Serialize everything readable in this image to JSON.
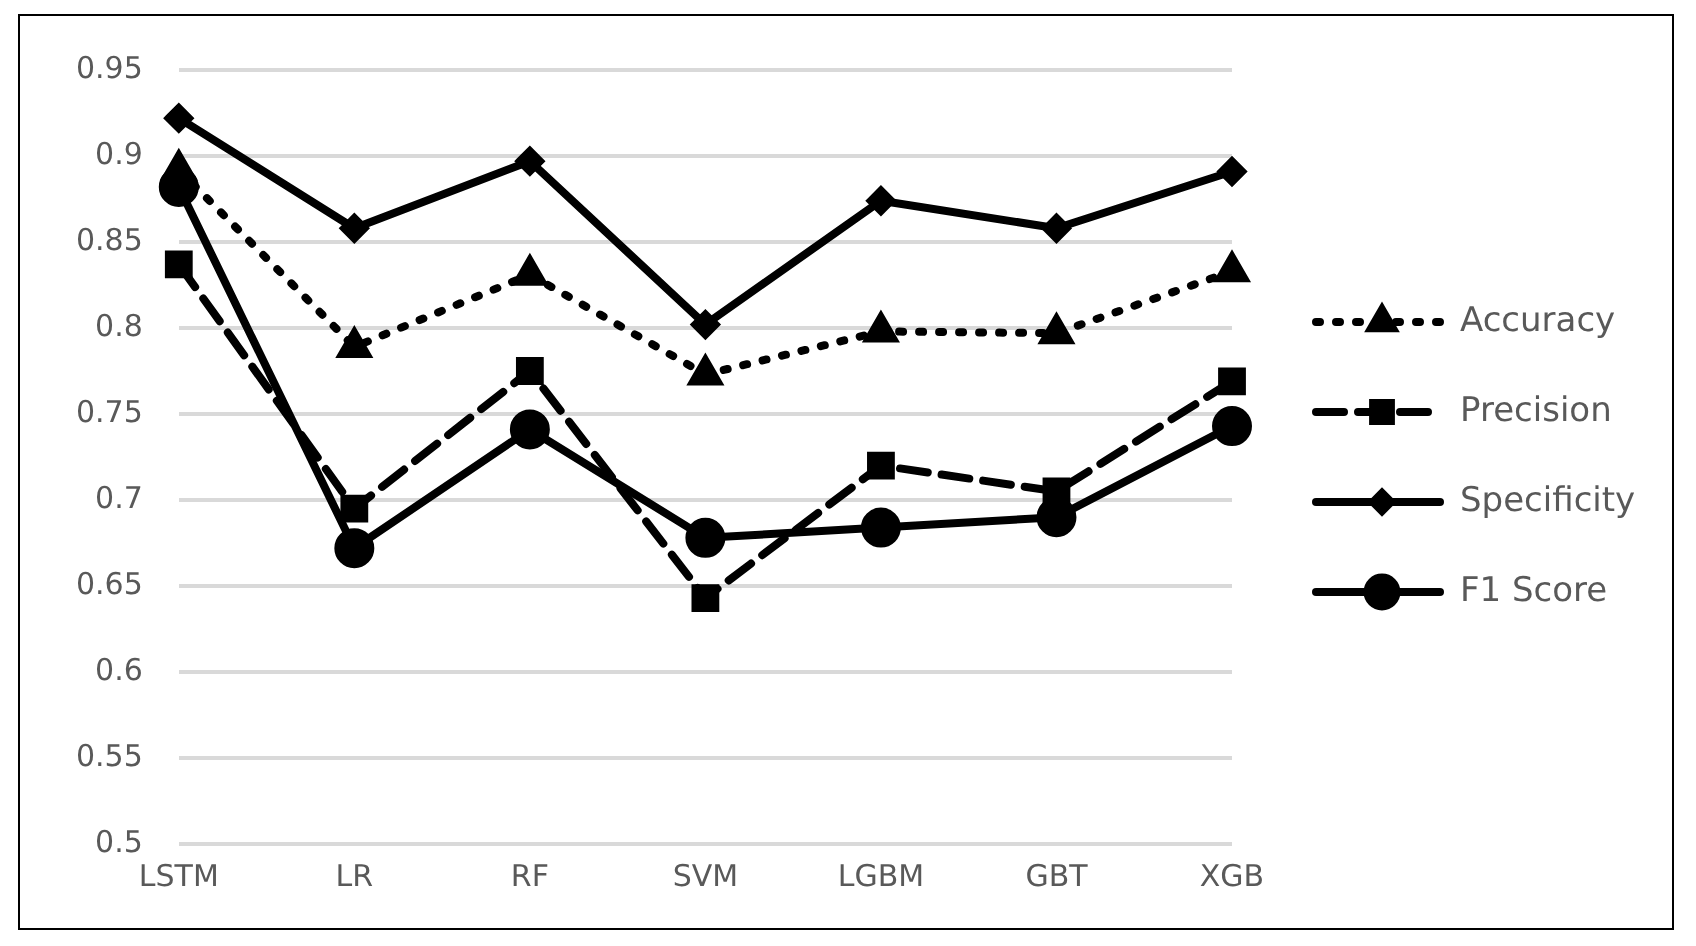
{
  "chart_data": {
    "type": "line",
    "categories": [
      "LSTM",
      "LR",
      "RF",
      "SVM",
      "LGBM",
      "GBT",
      "XGB"
    ],
    "series": [
      {
        "name": "Accuracy",
        "color": "#000000",
        "marker": "triangle",
        "line_style": "dotted",
        "values": [
          0.892,
          0.789,
          0.831,
          0.773,
          0.798,
          0.797,
          0.833
        ]
      },
      {
        "name": "Precision",
        "color": "#000000",
        "marker": "square",
        "line_style": "dashed",
        "values": [
          0.837,
          0.695,
          0.775,
          0.643,
          0.72,
          0.705,
          0.769
        ]
      },
      {
        "name": "Specificity",
        "color": "#000000",
        "marker": "diamond",
        "line_style": "solid",
        "values": [
          0.922,
          0.858,
          0.897,
          0.802,
          0.874,
          0.858,
          0.891
        ]
      },
      {
        "name": "F1 Score",
        "color": "#000000",
        "marker": "circle",
        "line_style": "solid",
        "values": [
          0.882,
          0.672,
          0.741,
          0.678,
          0.684,
          0.69,
          0.743
        ]
      }
    ],
    "ylim": [
      0.5,
      0.95
    ],
    "yticks": [
      0.5,
      0.55,
      0.6,
      0.65,
      0.7,
      0.75,
      0.8,
      0.85,
      0.9,
      0.95
    ],
    "grid": "y",
    "legend": "right"
  }
}
